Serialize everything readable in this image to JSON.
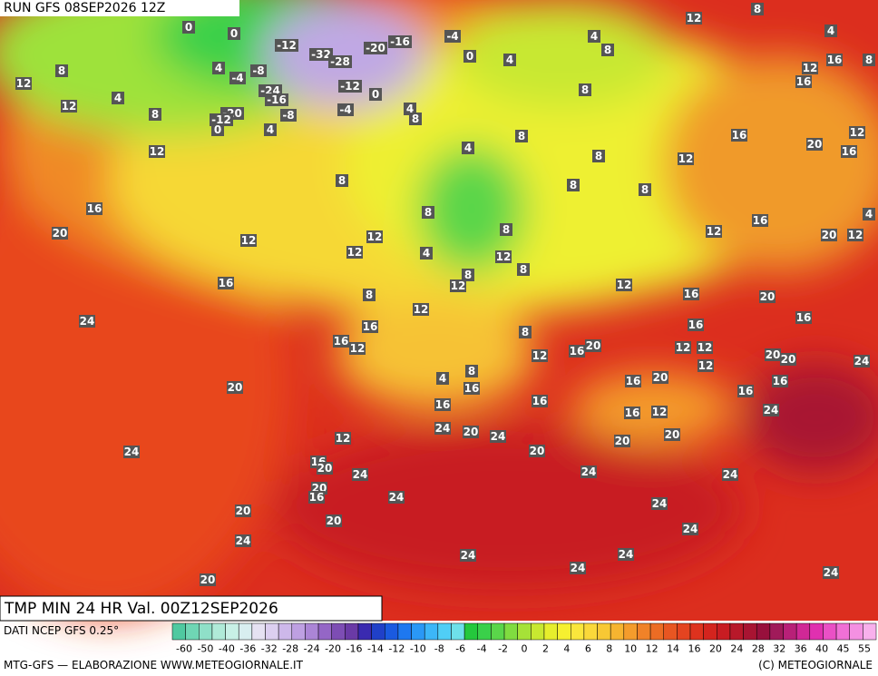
{
  "header": {
    "run": "RUN GFS 08SEP2026 12Z"
  },
  "title": "TMP MIN 24 HR Val. 00Z12SEP2026",
  "source": "DATI NCEP GFS 0.25°",
  "footer": {
    "left": "MTG-GFS — ELABORAZIONE WWW.METEOGIORNALE.IT",
    "right": "(C) METEOGIORNALE"
  },
  "legend": {
    "labels": [
      -60,
      -50,
      -40,
      -36,
      -32,
      -28,
      -24,
      -20,
      -16,
      -14,
      -12,
      -10,
      -8,
      -6,
      -4,
      -2,
      0,
      2,
      4,
      6,
      8,
      10,
      12,
      14,
      16,
      20,
      24,
      28,
      32,
      36,
      40,
      45,
      55
    ],
    "colors": [
      "#4fc9a0",
      "#6fd6b4",
      "#8fe0c8",
      "#b0ead8",
      "#c8f0e6",
      "#d8eef0",
      "#e6e2f2",
      "#dccff0",
      "#cdb8ea",
      "#bea0e2",
      "#ab85d6",
      "#9466c6",
      "#7d4db4",
      "#6a3aa6",
      "#3a2ab0",
      "#2040c8",
      "#1a5ae0",
      "#1e78f0",
      "#2a98f6",
      "#3cb6f8",
      "#50cef6",
      "#6ee0ea",
      "#24c83c",
      "#3ad04a",
      "#5ad64a",
      "#80dc40",
      "#a6e238",
      "#c8e830",
      "#e6ee2c",
      "#f6f030",
      "#fae63c",
      "#fad83a",
      "#f8c834",
      "#f6b430",
      "#f49c2c",
      "#f08228",
      "#ec6c24",
      "#e85622",
      "#e44420",
      "#de321e",
      "#d4241e",
      "#c81c22",
      "#b8182a",
      "#a81432",
      "#98103c",
      "#a01a5a",
      "#b82078",
      "#d02896",
      "#e030b0",
      "#ea50c6",
      "#f070d6",
      "#f490e2",
      "#f8b0ec"
    ]
  },
  "map_labels": [
    0,
    0,
    -12,
    -32,
    -28,
    -20,
    -16,
    -4,
    0,
    4,
    4,
    8,
    12,
    8,
    4,
    12,
    16,
    8,
    16,
    8,
    12,
    4,
    12,
    8,
    4,
    -8,
    -4,
    -24,
    -16,
    -20,
    -12,
    0,
    -8,
    4,
    -12,
    0,
    -4,
    4,
    8,
    8,
    12,
    4,
    8,
    8,
    12,
    16,
    20,
    12,
    16,
    8,
    8,
    8,
    16,
    20,
    12,
    8,
    12,
    12,
    8,
    12,
    8,
    4,
    8,
    12,
    12,
    16,
    20,
    12,
    4,
    16,
    8,
    12,
    12,
    16,
    20,
    24,
    16,
    16,
    12,
    8,
    12,
    16,
    20,
    16,
    12,
    12,
    12,
    20,
    20,
    16,
    24,
    4,
    8,
    16,
    16,
    20,
    16,
    16,
    20,
    16,
    16,
    16,
    12,
    24,
    24,
    20,
    24,
    12,
    20,
    20,
    24,
    16,
    20,
    24,
    20,
    24,
    24,
    20,
    16,
    24,
    24,
    20,
    20,
    24,
    24,
    24,
    24,
    24,
    24,
    20
  ]
}
